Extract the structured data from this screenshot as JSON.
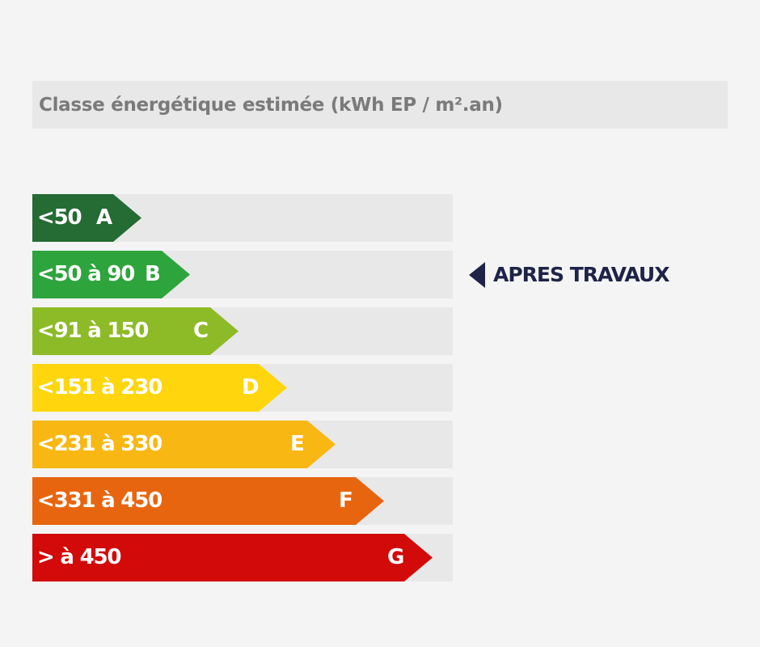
{
  "title": "Classe énergétique estimée (kWh EP / m².an)",
  "chart_data": {
    "type": "bar",
    "title": "Classe énergétique estimée (kWh EP / m².an)",
    "categories": [
      "A",
      "B",
      "C",
      "D",
      "E",
      "F",
      "G"
    ],
    "ranges": [
      "<50",
      "<50 à 90",
      "<91 à 150",
      "<151 à 230",
      "<231 à 330",
      "<331 à 450",
      "> à 450"
    ],
    "colors": [
      "#246b34",
      "#2ea43c",
      "#8dbb28",
      "#ffd60d",
      "#f8b713",
      "#e8650f",
      "#d20a0a"
    ],
    "current_class": "B",
    "marker_label": "APRES TRAVAUX"
  }
}
